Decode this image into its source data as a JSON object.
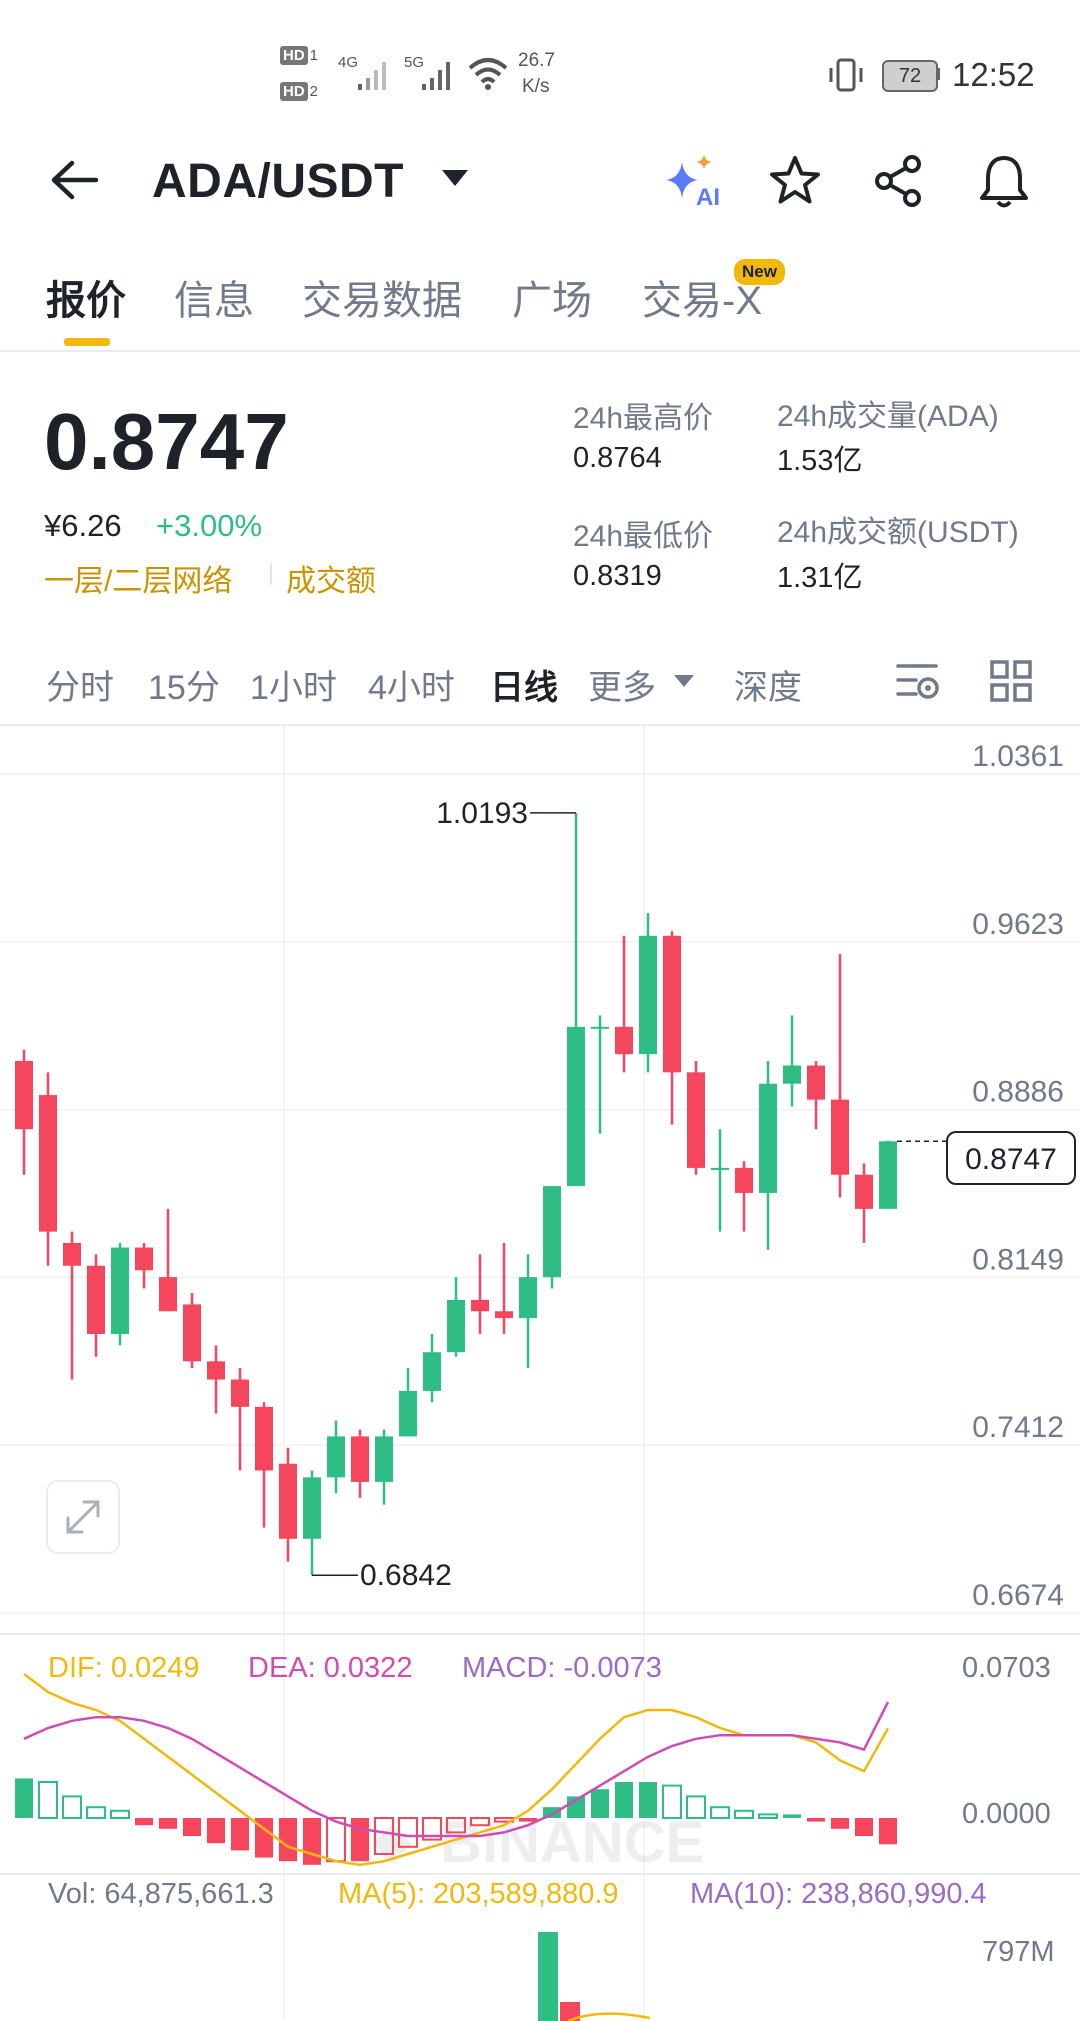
{
  "status_bar": {
    "sim1": "HD",
    "sim1_num": "1",
    "sim2": "HD",
    "sim2_num": "2",
    "net1": "4G",
    "net2": "5G",
    "speed_value": "26.7",
    "speed_unit": "K/s",
    "battery": "72",
    "time": "12:52"
  },
  "header": {
    "pair": "ADA/USDT",
    "ai_label": "AI",
    "icons": [
      "back-arrow-icon",
      "chevron-down-icon",
      "ai-sparkle-icon",
      "star-icon",
      "share-icon",
      "bell-icon"
    ]
  },
  "tabs": [
    {
      "label": "报价",
      "active": true
    },
    {
      "label": "信息",
      "active": false
    },
    {
      "label": "交易数据",
      "active": false
    },
    {
      "label": "广场",
      "active": false
    },
    {
      "label": "交易-X",
      "active": false,
      "badge": "New"
    }
  ],
  "price": {
    "last": "0.8747",
    "cny": "¥6.26",
    "change": "+3.00%",
    "layer_link": "一层/二层网络",
    "turnover_link": "成交额",
    "high_label": "24h最高价",
    "high_value": "0.8764",
    "low_label": "24h最低价",
    "low_value": "0.8319",
    "vol_label": "24h成交量(ADA)",
    "vol_value": "1.53亿",
    "amount_label": "24h成交额(USDT)",
    "amount_value": "1.31亿",
    "colors": {
      "up": "#2ebd85",
      "down": "#f6465d",
      "accent": "#f0b90b"
    }
  },
  "intervals": [
    {
      "label": "分时",
      "active": false
    },
    {
      "label": "15分",
      "active": false
    },
    {
      "label": "1小时",
      "active": false
    },
    {
      "label": "4小时",
      "active": false
    },
    {
      "label": "日线",
      "active": true
    },
    {
      "label": "更多",
      "active": false
    },
    {
      "label": "深度",
      "active": false
    }
  ],
  "chart": {
    "watermark": "BINANCE",
    "y_ticks": [
      "1.0361",
      "0.9623",
      "0.8886",
      "0.8149",
      "0.7412",
      "0.6674"
    ],
    "high_label": "1.0193",
    "low_label": "0.6842",
    "current_tag": "0.8747",
    "macd": {
      "dif": "DIF: 0.0249",
      "dea": "DEA: 0.0322",
      "macd": "MACD: -0.0073",
      "ticks": [
        "0.0703",
        "0.0000"
      ]
    },
    "volume": {
      "vol": "Vol: 64,875,661.3",
      "ma5": "MA(5): 203,589,880.9",
      "ma10": "MA(10): 238,860,990.4",
      "tick": "797M"
    }
  },
  "chart_data": {
    "type": "candlestick",
    "ylim": [
      0.6674,
      1.0361
    ],
    "candles": [
      {
        "o": 0.88,
        "h": 0.915,
        "l": 0.86,
        "c": 0.91,
        "color": "down"
      },
      {
        "o": 0.895,
        "h": 0.905,
        "l": 0.82,
        "c": 0.835,
        "color": "down"
      },
      {
        "o": 0.83,
        "h": 0.835,
        "l": 0.77,
        "c": 0.82,
        "color": "down"
      },
      {
        "o": 0.82,
        "h": 0.825,
        "l": 0.78,
        "c": 0.79,
        "color": "down"
      },
      {
        "o": 0.79,
        "h": 0.83,
        "l": 0.785,
        "c": 0.828,
        "color": "up"
      },
      {
        "o": 0.828,
        "h": 0.83,
        "l": 0.81,
        "c": 0.818,
        "color": "down"
      },
      {
        "o": 0.815,
        "h": 0.845,
        "l": 0.8,
        "c": 0.8,
        "color": "down"
      },
      {
        "o": 0.803,
        "h": 0.808,
        "l": 0.775,
        "c": 0.778,
        "color": "down"
      },
      {
        "o": 0.778,
        "h": 0.785,
        "l": 0.755,
        "c": 0.77,
        "color": "down"
      },
      {
        "o": 0.77,
        "h": 0.775,
        "l": 0.73,
        "c": 0.758,
        "color": "down"
      },
      {
        "o": 0.758,
        "h": 0.76,
        "l": 0.705,
        "c": 0.73,
        "color": "down"
      },
      {
        "o": 0.733,
        "h": 0.74,
        "l": 0.69,
        "c": 0.7,
        "color": "down"
      },
      {
        "o": 0.7,
        "h": 0.73,
        "l": 0.684,
        "c": 0.727,
        "color": "up"
      },
      {
        "o": 0.727,
        "h": 0.752,
        "l": 0.72,
        "c": 0.745,
        "color": "up"
      },
      {
        "o": 0.745,
        "h": 0.748,
        "l": 0.718,
        "c": 0.725,
        "color": "down"
      },
      {
        "o": 0.725,
        "h": 0.748,
        "l": 0.715,
        "c": 0.745,
        "color": "up"
      },
      {
        "o": 0.745,
        "h": 0.775,
        "l": 0.745,
        "c": 0.765,
        "color": "up"
      },
      {
        "o": 0.765,
        "h": 0.79,
        "l": 0.76,
        "c": 0.782,
        "color": "up"
      },
      {
        "o": 0.782,
        "h": 0.815,
        "l": 0.78,
        "c": 0.805,
        "color": "up"
      },
      {
        "o": 0.805,
        "h": 0.825,
        "l": 0.79,
        "c": 0.8,
        "color": "down"
      },
      {
        "o": 0.8,
        "h": 0.83,
        "l": 0.79,
        "c": 0.797,
        "color": "down"
      },
      {
        "o": 0.797,
        "h": 0.825,
        "l": 0.775,
        "c": 0.815,
        "color": "up"
      },
      {
        "o": 0.815,
        "h": 0.855,
        "l": 0.81,
        "c": 0.855,
        "color": "up"
      },
      {
        "o": 0.855,
        "h": 1.019,
        "l": 0.855,
        "c": 0.925,
        "color": "up"
      },
      {
        "o": 0.925,
        "h": 0.93,
        "l": 0.878,
        "c": 0.925,
        "color": "up"
      },
      {
        "o": 0.925,
        "h": 0.965,
        "l": 0.905,
        "c": 0.913,
        "color": "down"
      },
      {
        "o": 0.913,
        "h": 0.975,
        "l": 0.905,
        "c": 0.965,
        "color": "up"
      },
      {
        "o": 0.965,
        "h": 0.967,
        "l": 0.882,
        "c": 0.905,
        "color": "down"
      },
      {
        "o": 0.905,
        "h": 0.91,
        "l": 0.86,
        "c": 0.863,
        "color": "down"
      },
      {
        "o": 0.863,
        "h": 0.88,
        "l": 0.835,
        "c": 0.863,
        "color": "up"
      },
      {
        "o": 0.863,
        "h": 0.866,
        "l": 0.835,
        "c": 0.852,
        "color": "down"
      },
      {
        "o": 0.852,
        "h": 0.91,
        "l": 0.827,
        "c": 0.9,
        "color": "up"
      },
      {
        "o": 0.9,
        "h": 0.93,
        "l": 0.89,
        "c": 0.908,
        "color": "up"
      },
      {
        "o": 0.908,
        "h": 0.91,
        "l": 0.88,
        "c": 0.893,
        "color": "down"
      },
      {
        "o": 0.893,
        "h": 0.957,
        "l": 0.85,
        "c": 0.86,
        "color": "down"
      },
      {
        "o": 0.86,
        "h": 0.865,
        "l": 0.83,
        "c": 0.845,
        "color": "down"
      },
      {
        "o": 0.845,
        "h": 0.875,
        "l": 0.845,
        "c": 0.8747,
        "color": "up"
      }
    ],
    "macd": {
      "hist": [
        0.011,
        0.01,
        0.006,
        0.003,
        0.002,
        -0.002,
        -0.003,
        -0.005,
        -0.007,
        -0.009,
        -0.011,
        -0.012,
        -0.013,
        -0.012,
        -0.012,
        -0.01,
        -0.008,
        -0.006,
        -0.004,
        -0.002,
        -0.001,
        -0.001,
        0.003,
        0.006,
        0.008,
        0.01,
        0.01,
        0.009,
        0.006,
        0.003,
        0.002,
        0.001,
        0.001,
        -0.001,
        -0.003,
        -0.005,
        -0.0073
      ],
      "dif": [
        0.04,
        0.035,
        0.032,
        0.03,
        0.027,
        0.022,
        0.017,
        0.012,
        0.007,
        0.002,
        -0.003,
        -0.008,
        -0.01,
        -0.012,
        -0.013,
        -0.012,
        -0.01,
        -0.008,
        -0.006,
        -0.004,
        -0.002,
        0.002,
        0.008,
        0.015,
        0.022,
        0.028,
        0.03,
        0.03,
        0.028,
        0.025,
        0.023,
        0.023,
        0.023,
        0.021,
        0.016,
        0.013,
        0.0249
      ],
      "dea": [
        0.022,
        0.025,
        0.027,
        0.028,
        0.028,
        0.027,
        0.025,
        0.022,
        0.018,
        0.014,
        0.01,
        0.006,
        0.002,
        -0.001,
        -0.003,
        -0.004,
        -0.005,
        -0.005,
        -0.005,
        -0.005,
        -0.004,
        -0.002,
        0.001,
        0.005,
        0.009,
        0.013,
        0.017,
        0.02,
        0.022,
        0.023,
        0.023,
        0.023,
        0.023,
        0.022,
        0.021,
        0.019,
        0.0322
      ]
    }
  }
}
